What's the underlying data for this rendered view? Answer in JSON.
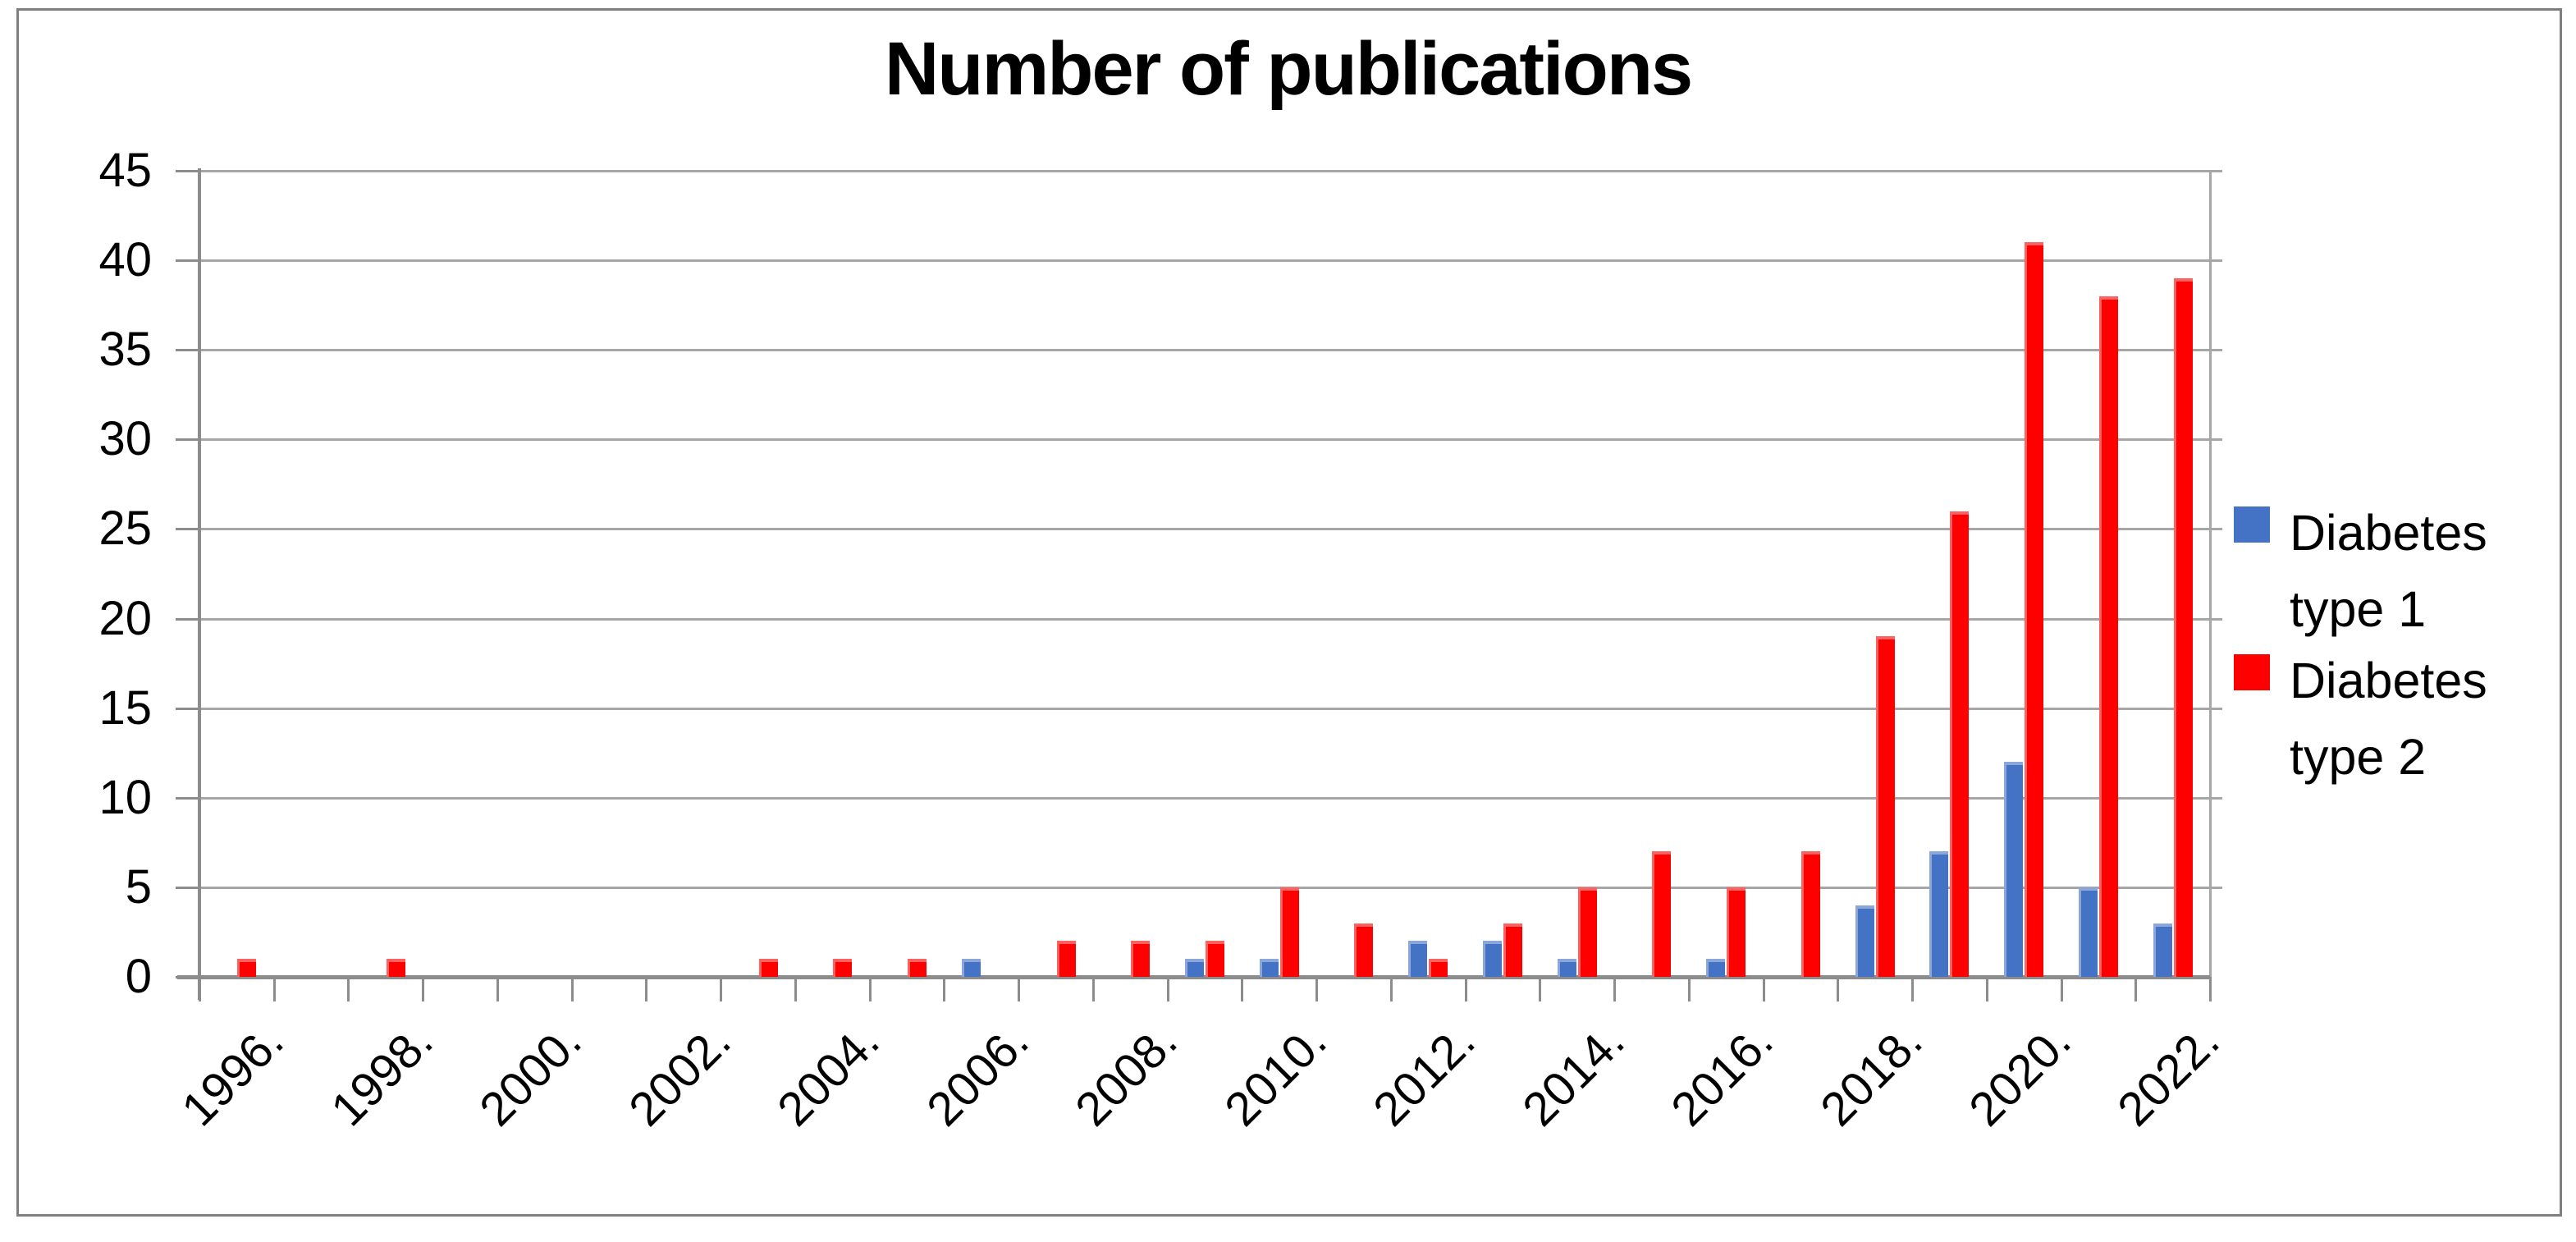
{
  "figure": {
    "background": "#FFFFFF",
    "border_color": "#7F7F7F"
  },
  "chart_data": {
    "type": "bar",
    "title": "Number of publications",
    "years": [
      1996,
      1997,
      1998,
      1999,
      2000,
      2001,
      2002,
      2003,
      2004,
      2005,
      2006,
      2007,
      2008,
      2009,
      2010,
      2011,
      2012,
      2013,
      2014,
      2015,
      2016,
      2017,
      2018,
      2019,
      2020,
      2021,
      2022
    ],
    "xtick_labels": [
      "1996.",
      "1998.",
      "2000.",
      "2002.",
      "2004.",
      "2006.",
      "2008.",
      "2010.",
      "2012.",
      "2014.",
      "2016.",
      "2018.",
      "2020.",
      "2022."
    ],
    "series": [
      {
        "name": "Diabetes type 1",
        "color": "#4472C4",
        "values": [
          0,
          0,
          0,
          0,
          0,
          0,
          0,
          0,
          0,
          0,
          1,
          0,
          0,
          1,
          1,
          0,
          2,
          2,
          1,
          0,
          1,
          0,
          4,
          7,
          12,
          5,
          3
        ]
      },
      {
        "name": "Diabetes type 2",
        "color": "#FF0000",
        "values": [
          1,
          0,
          1,
          0,
          0,
          0,
          0,
          1,
          1,
          1,
          0,
          2,
          2,
          2,
          5,
          3,
          1,
          3,
          5,
          7,
          5,
          7,
          19,
          26,
          41,
          38,
          39
        ]
      }
    ],
    "ylim": [
      0,
      45
    ],
    "yticks": [
      0,
      5,
      10,
      15,
      20,
      25,
      30,
      35,
      40,
      45
    ],
    "grid": true,
    "legend_position": "right",
    "axis_color": "#8C8C8C",
    "gridline_color": "#A6A6A6"
  }
}
